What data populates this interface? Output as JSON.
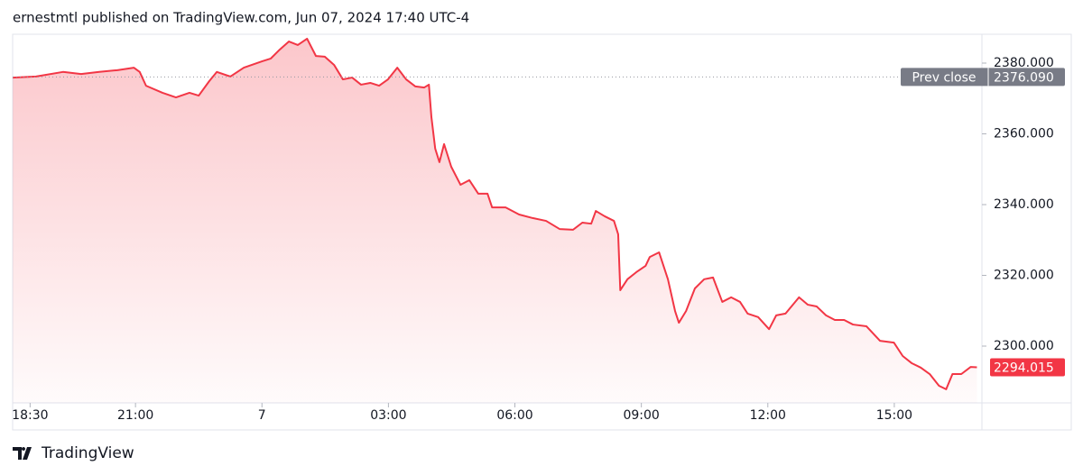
{
  "chart_data": {
    "type": "area",
    "header": "ernestmtl published on TradingView.com, Jun 07, 2024 17:40 UTC-4",
    "brand": "TradingView",
    "color": "#f23645",
    "x": [
      0.09,
      0.64,
      1.28,
      1.71,
      2.14,
      2.57,
      2.96,
      3.1,
      3.25,
      3.64,
      3.96,
      4.28,
      4.5,
      4.75,
      4.93,
      5.25,
      5.57,
      6.0,
      6.21,
      6.42,
      6.64,
      6.85,
      7.07,
      7.28,
      7.49,
      7.71,
      7.92,
      8.14,
      8.35,
      8.57,
      8.78,
      8.99,
      9.21,
      9.42,
      9.64,
      9.85,
      9.96,
      10.02,
      10.11,
      10.21,
      10.32,
      10.49,
      10.71,
      10.92,
      11.13,
      11.35,
      11.46,
      11.78,
      12.1,
      12.42,
      12.74,
      13.06,
      13.38,
      13.6,
      13.81,
      13.92,
      14.13,
      14.35,
      14.45,
      14.5,
      14.67,
      14.88,
      15.1,
      15.2,
      15.42,
      15.63,
      15.8,
      15.89,
      16.06,
      16.27,
      16.49,
      16.7,
      16.92,
      17.13,
      17.34,
      17.52,
      17.77,
      18.03,
      18.2,
      18.42,
      18.74,
      18.95,
      19.16,
      19.38,
      19.59,
      19.81,
      20.02,
      20.34,
      20.66,
      20.99,
      21.2,
      21.41,
      21.63,
      21.84,
      22.06,
      22.23,
      22.38,
      22.59,
      22.81,
      22.96
    ],
    "values": [
      2375.9,
      2376.2,
      2377.5,
      2376.9,
      2377.5,
      2378.0,
      2378.7,
      2377.5,
      2373.6,
      2371.6,
      2370.3,
      2371.6,
      2370.8,
      2374.9,
      2377.5,
      2376.2,
      2378.7,
      2380.5,
      2381.3,
      2383.8,
      2386.1,
      2385.1,
      2386.9,
      2382.0,
      2381.8,
      2379.5,
      2375.4,
      2375.9,
      2373.9,
      2374.4,
      2373.6,
      2375.4,
      2378.7,
      2375.4,
      2373.4,
      2373.1,
      2373.9,
      2364.7,
      2355.8,
      2352.0,
      2357.1,
      2350.7,
      2345.6,
      2346.9,
      2343.1,
      2343.1,
      2339.2,
      2339.2,
      2337.2,
      2336.2,
      2335.4,
      2333.1,
      2332.9,
      2334.9,
      2334.6,
      2338.2,
      2336.7,
      2335.4,
      2331.6,
      2315.8,
      2318.9,
      2320.9,
      2322.7,
      2325.2,
      2326.5,
      2318.9,
      2309.9,
      2306.6,
      2309.9,
      2316.3,
      2318.9,
      2319.4,
      2312.5,
      2313.8,
      2312.5,
      2309.2,
      2308.2,
      2304.8,
      2308.7,
      2309.2,
      2313.8,
      2311.7,
      2311.2,
      2308.7,
      2307.4,
      2307.4,
      2306.1,
      2305.6,
      2301.5,
      2301.0,
      2297.2,
      2295.2,
      2293.9,
      2292.1,
      2288.8,
      2287.8,
      2292.1,
      2292.1,
      2294.1,
      2294.015
    ],
    "last_price": 2294.015,
    "prev_close": {
      "label": "Prev close",
      "value": 2376.09,
      "value_label": "2376.090"
    },
    "xlim": [
      0,
      23.1
    ],
    "xticks": [
      {
        "value": 0.5,
        "label": "18:30"
      },
      {
        "value": 3,
        "label": "21:00"
      },
      {
        "value": 6,
        "label": "7"
      },
      {
        "value": 9,
        "label": "03:00"
      },
      {
        "value": 12,
        "label": "06:00"
      },
      {
        "value": 15,
        "label": "09:00"
      },
      {
        "value": 18,
        "label": "12:00"
      },
      {
        "value": 21,
        "label": "15:00"
      }
    ],
    "ylim": [
      2283.95,
      2388.15
    ],
    "yticks": [
      {
        "value": 2300,
        "label": "2300.000"
      },
      {
        "value": 2320,
        "label": "2320.000"
      },
      {
        "value": 2340,
        "label": "2340.000"
      },
      {
        "value": 2360,
        "label": "2360.000"
      },
      {
        "value": 2380,
        "label": "2380.000"
      }
    ],
    "grid": false
  }
}
